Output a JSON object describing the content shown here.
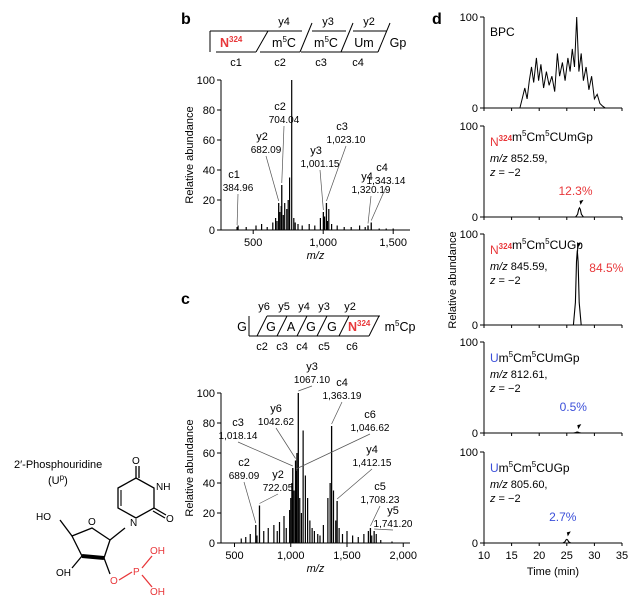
{
  "colors": {
    "red": "#e8373a",
    "blue": "#3b4fd9",
    "black": "#000000"
  },
  "panels": {
    "b": {
      "label": "b"
    },
    "c": {
      "label": "c"
    },
    "d": {
      "label": "d"
    }
  },
  "molecule": {
    "name": "2′-Phosphouridine",
    "abbr": "(U",
    "abbr_sup": "p",
    "abbr_close": ")",
    "atoms": {
      "ho": "HO",
      "o": "O",
      "n": "N",
      "nh": "NH",
      "o2": "O",
      "o3": "O",
      "p": "P",
      "oh1": "OH",
      "oh2": "OH",
      "o4": "O"
    }
  },
  "chart_data": [
    {
      "panel": "b",
      "type": "bar",
      "xlabel": "m/z",
      "ylabel": "Relative abundance",
      "xlim": [
        270,
        1620
      ],
      "ylim": [
        0,
        100
      ],
      "xticks": [
        500,
        1000,
        1500
      ],
      "xtick_labels": [
        "500",
        "1,000",
        "1,500"
      ],
      "yticks": [
        0,
        20,
        40,
        60,
        80,
        100
      ],
      "sequence": {
        "residues": [
          "N",
          "m5C",
          "m5C",
          "Um"
        ],
        "n_sup": "324",
        "suffix": "Gp",
        "y_ions": [
          "y4",
          "y3",
          "y2"
        ],
        "c_ions": [
          "c1",
          "c2",
          "c3",
          "c4"
        ]
      },
      "peaks_labeled": [
        {
          "ion": "c1",
          "mz": 384.96,
          "mz_label": "384.96",
          "intensity": 2
        },
        {
          "ion": "y2",
          "mz": 682.09,
          "mz_label": "682.09",
          "intensity": 18
        },
        {
          "ion": "c2",
          "mz": 704.04,
          "mz_label": "704.04",
          "intensity": 30
        },
        {
          "ion": "y3",
          "mz": 1001.15,
          "mz_label": "1,001.15",
          "intensity": 12
        },
        {
          "ion": "c3",
          "mz": 1023.1,
          "mz_label": "1,023.10",
          "intensity": 18
        },
        {
          "ion": "y4",
          "mz": 1320.19,
          "mz_label": "1,320.19",
          "intensity": 3
        },
        {
          "ion": "c4",
          "mz": 1343.14,
          "mz_label": "1,343.14",
          "intensity": 5
        }
      ],
      "peaks_other": [
        [
          392,
          3
        ],
        [
          450,
          2
        ],
        [
          520,
          3
        ],
        [
          560,
          4
        ],
        [
          600,
          2
        ],
        [
          640,
          5
        ],
        [
          660,
          8
        ],
        [
          670,
          6
        ],
        [
          690,
          12
        ],
        [
          700,
          16
        ],
        [
          715,
          10
        ],
        [
          725,
          18
        ],
        [
          740,
          14
        ],
        [
          750,
          20
        ],
        [
          760,
          35
        ],
        [
          775,
          100
        ],
        [
          790,
          8
        ],
        [
          800,
          5
        ],
        [
          820,
          4
        ],
        [
          850,
          3
        ],
        [
          900,
          4
        ],
        [
          940,
          3
        ],
        [
          980,
          8
        ],
        [
          1010,
          9
        ],
        [
          1030,
          6
        ],
        [
          1040,
          14
        ],
        [
          1060,
          4
        ],
        [
          1100,
          3
        ],
        [
          1150,
          2
        ],
        [
          1200,
          2
        ],
        [
          1260,
          3
        ],
        [
          1300,
          2
        ],
        [
          1400,
          1
        ],
        [
          1450,
          1
        ],
        [
          1500,
          1
        ]
      ]
    },
    {
      "panel": "c",
      "type": "bar",
      "xlabel": "m/z",
      "ylabel": "Relative abundance",
      "xlim": [
        380,
        2060
      ],
      "ylim": [
        0,
        100
      ],
      "xticks": [
        500,
        1000,
        1500,
        2000
      ],
      "xtick_labels": [
        "500",
        "1,000",
        "1,500",
        "2,000"
      ],
      "yticks": [
        0,
        20,
        40,
        60,
        80,
        100
      ],
      "sequence": {
        "prefix": "G",
        "residues": [
          "G",
          "A",
          "G",
          "G",
          "N"
        ],
        "n_sup": "324",
        "suffix": "m5Cp",
        "y_ions": [
          "y6",
          "y5",
          "y4",
          "y3",
          "y2"
        ],
        "c_ions": [
          "c2",
          "c3",
          "c4",
          "c5",
          "c6"
        ]
      },
      "peaks_labeled": [
        {
          "ion": "c2",
          "mz": 689.09,
          "mz_label": "689.09",
          "intensity": 12
        },
        {
          "ion": "y2",
          "mz": 722.05,
          "mz_label": "722.05",
          "intensity": 25
        },
        {
          "ion": "c3",
          "mz": 1018.14,
          "mz_label": "1,018.14",
          "intensity": 50
        },
        {
          "ion": "y6",
          "mz": 1042.62,
          "mz_label": "1042.62",
          "intensity": 55
        },
        {
          "ion": "y3",
          "mz": 1067.1,
          "mz_label": "1067.10",
          "intensity": 100
        },
        {
          "ion": "c4",
          "mz": 1363.19,
          "mz_label": "1,363.19",
          "intensity": 78
        },
        {
          "ion": "c6",
          "mz": 1046.62,
          "mz_label": "1,046.62",
          "intensity": 48
        },
        {
          "ion": "y4",
          "mz": 1412.15,
          "mz_label": "1,412.15",
          "intensity": 28
        },
        {
          "ion": "c5",
          "mz": 1708.23,
          "mz_label": "1,708.23",
          "intensity": 10
        },
        {
          "ion": "y5",
          "mz": 1741.2,
          "mz_label": "1,741.20",
          "intensity": 8
        }
      ],
      "peaks_other": [
        [
          560,
          3
        ],
        [
          600,
          4
        ],
        [
          640,
          6
        ],
        [
          700,
          5
        ],
        [
          760,
          8
        ],
        [
          800,
          10
        ],
        [
          850,
          12
        ],
        [
          880,
          8
        ],
        [
          900,
          14
        ],
        [
          940,
          18
        ],
        [
          960,
          10
        ],
        [
          990,
          22
        ],
        [
          1000,
          30
        ],
        [
          1010,
          40
        ],
        [
          1030,
          35
        ],
        [
          1055,
          60
        ],
        [
          1080,
          30
        ],
        [
          1095,
          20
        ],
        [
          1110,
          75
        ],
        [
          1130,
          45
        ],
        [
          1150,
          30
        ],
        [
          1170,
          15
        ],
        [
          1190,
          10
        ],
        [
          1210,
          8
        ],
        [
          1240,
          6
        ],
        [
          1260,
          5
        ],
        [
          1290,
          12
        ],
        [
          1330,
          30
        ],
        [
          1350,
          40
        ],
        [
          1380,
          35
        ],
        [
          1400,
          15
        ],
        [
          1430,
          10
        ],
        [
          1460,
          6
        ],
        [
          1500,
          8
        ],
        [
          1550,
          5
        ],
        [
          1600,
          4
        ],
        [
          1650,
          6
        ],
        [
          1690,
          8
        ],
        [
          1720,
          5
        ],
        [
          1760,
          6
        ],
        [
          1800,
          2
        ],
        [
          1900,
          1
        ]
      ]
    },
    {
      "panel": "d",
      "type": "line",
      "xlabel": "Time (min)",
      "ylabel": "Relative abundance",
      "xlim": [
        10,
        35
      ],
      "xticks": [
        10,
        15,
        20,
        25,
        30,
        35
      ],
      "yticks": [
        0,
        100
      ],
      "traces": [
        {
          "name": "BPC",
          "color": "#000000",
          "points": [
            [
              10,
              0
            ],
            [
              16.5,
              0
            ],
            [
              17,
              12
            ],
            [
              17.4,
              22
            ],
            [
              17.8,
              10
            ],
            [
              18.2,
              30
            ],
            [
              18.6,
              45
            ],
            [
              19,
              28
            ],
            [
              19.5,
              55
            ],
            [
              19.9,
              30
            ],
            [
              20.3,
              48
            ],
            [
              20.8,
              22
            ],
            [
              21.3,
              40
            ],
            [
              21.8,
              25
            ],
            [
              22.3,
              35
            ],
            [
              22.8,
              18
            ],
            [
              23.3,
              60
            ],
            [
              23.7,
              35
            ],
            [
              24.2,
              50
            ],
            [
              24.7,
              30
            ],
            [
              25.2,
              55
            ],
            [
              25.6,
              40
            ],
            [
              26,
              65
            ],
            [
              26.4,
              45
            ],
            [
              26.8,
              100
            ],
            [
              27.2,
              40
            ],
            [
              27.6,
              60
            ],
            [
              28,
              30
            ],
            [
              28.5,
              45
            ],
            [
              29,
              20
            ],
            [
              29.5,
              35
            ],
            [
              30,
              10
            ],
            [
              30.5,
              15
            ],
            [
              31,
              5
            ],
            [
              31.5,
              2
            ],
            [
              32,
              0
            ],
            [
              35,
              0
            ]
          ]
        },
        {
          "name_prefix": "N",
          "name_sup": "324",
          "name_rest": "m5Cm5CUmGp",
          "name_prefix_color": "#e8373a",
          "mz_label": "m/z",
          "mz": "852.59,",
          "z_label": "z",
          "z": "= −2",
          "percent": "12.3%",
          "percent_color": "#e8373a",
          "peak_rt": 27.3,
          "peak_height": 10
        },
        {
          "name_prefix": "N",
          "name_sup": "324",
          "name_rest": "m5Cm5CUGp",
          "name_prefix_color": "#e8373a",
          "mz_label": "m/z",
          "mz": "845.59,",
          "z_label": "z",
          "z": "= −2",
          "percent": "84.5%",
          "percent_color": "#e8373a",
          "peak_rt": 26.9,
          "peak_height": 82
        },
        {
          "name_prefix": "U",
          "name_sup": "",
          "name_rest": "m5Cm5CUmGp",
          "name_prefix_color": "#3b4fd9",
          "mz_label": "m/z",
          "mz": "812.61,",
          "z_label": "z",
          "z": "= −2",
          "percent": "0.5%",
          "percent_color": "#3b4fd9",
          "peak_rt": 26.9,
          "peak_height": 1
        },
        {
          "name_prefix": "U",
          "name_sup": "",
          "name_rest": "m5Cm5CUGp",
          "name_prefix_color": "#3b4fd9",
          "mz_label": "m/z",
          "mz": "805.60,",
          "z_label": "z",
          "z": "= −2",
          "percent": "2.7%",
          "percent_color": "#3b4fd9",
          "peak_rt": 25.0,
          "peak_height": 4
        }
      ]
    }
  ]
}
